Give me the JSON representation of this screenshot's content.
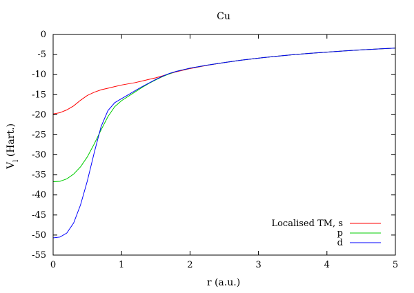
{
  "chart_data": {
    "type": "line",
    "title": "Cu",
    "xlabel": "r (a.u.)",
    "ylabel": {
      "main": "V",
      "sub": "l",
      "unit": " (Hart.)"
    },
    "xlim": [
      0,
      5
    ],
    "ylim": [
      -55,
      0
    ],
    "x_ticks": [
      0,
      1,
      2,
      3,
      4,
      5
    ],
    "y_ticks": [
      0,
      -5,
      -10,
      -15,
      -20,
      -25,
      -30,
      -35,
      -40,
      -45,
      -50,
      -55
    ],
    "grid": false,
    "legend_position": "bottom-right",
    "series": [
      {
        "name": "Localised TM, s",
        "color": "#ff0000",
        "points": [
          [
            0,
            -19.8
          ],
          [
            0.1,
            -19.5
          ],
          [
            0.2,
            -18.8
          ],
          [
            0.3,
            -17.8
          ],
          [
            0.4,
            -16.4
          ],
          [
            0.5,
            -15.2
          ],
          [
            0.6,
            -14.4
          ],
          [
            0.7,
            -13.8
          ],
          [
            0.8,
            -13.4
          ],
          [
            0.9,
            -13.0
          ],
          [
            1.0,
            -12.6
          ],
          [
            1.1,
            -12.3
          ],
          [
            1.2,
            -12.0
          ],
          [
            1.3,
            -11.6
          ],
          [
            1.4,
            -11.2
          ],
          [
            1.5,
            -10.8
          ],
          [
            1.6,
            -10.3
          ],
          [
            1.7,
            -9.8
          ],
          [
            1.8,
            -9.3
          ],
          [
            1.9,
            -8.9
          ],
          [
            2.0,
            -8.5
          ],
          [
            2.25,
            -7.7
          ],
          [
            2.5,
            -7.0
          ],
          [
            2.75,
            -6.4
          ],
          [
            3.0,
            -5.9
          ],
          [
            3.25,
            -5.45
          ],
          [
            3.5,
            -5.05
          ],
          [
            3.75,
            -4.7
          ],
          [
            4.0,
            -4.4
          ],
          [
            4.25,
            -4.1
          ],
          [
            4.5,
            -3.85
          ],
          [
            4.75,
            -3.6
          ],
          [
            5.0,
            -3.4
          ]
        ]
      },
      {
        "name": "p",
        "color": "#00cc00",
        "points": [
          [
            0,
            -36.7
          ],
          [
            0.1,
            -36.6
          ],
          [
            0.2,
            -36.0
          ],
          [
            0.3,
            -34.8
          ],
          [
            0.4,
            -33.0
          ],
          [
            0.5,
            -30.5
          ],
          [
            0.6,
            -27.3
          ],
          [
            0.7,
            -23.8
          ],
          [
            0.8,
            -20.5
          ],
          [
            0.9,
            -18.0
          ],
          [
            1.0,
            -16.5
          ],
          [
            1.1,
            -15.4
          ],
          [
            1.2,
            -14.3
          ],
          [
            1.3,
            -13.2
          ],
          [
            1.4,
            -12.2
          ],
          [
            1.5,
            -11.3
          ],
          [
            1.6,
            -10.5
          ],
          [
            1.7,
            -9.8
          ],
          [
            1.8,
            -9.2
          ],
          [
            1.9,
            -8.8
          ],
          [
            2.0,
            -8.4
          ],
          [
            2.25,
            -7.65
          ],
          [
            2.5,
            -7.0
          ],
          [
            2.75,
            -6.4
          ],
          [
            3.0,
            -5.9
          ],
          [
            3.25,
            -5.45
          ],
          [
            3.5,
            -5.05
          ],
          [
            3.75,
            -4.7
          ],
          [
            4.0,
            -4.4
          ],
          [
            4.25,
            -4.1
          ],
          [
            4.5,
            -3.85
          ],
          [
            4.75,
            -3.6
          ],
          [
            5.0,
            -3.4
          ]
        ]
      },
      {
        "name": "d",
        "color": "#0000ff",
        "points": [
          [
            0,
            -50.7
          ],
          [
            0.1,
            -50.5
          ],
          [
            0.2,
            -49.5
          ],
          [
            0.3,
            -47.0
          ],
          [
            0.4,
            -42.5
          ],
          [
            0.5,
            -36.5
          ],
          [
            0.6,
            -29.5
          ],
          [
            0.7,
            -23.0
          ],
          [
            0.8,
            -19.0
          ],
          [
            0.9,
            -17.0
          ],
          [
            1.0,
            -16.0
          ],
          [
            1.1,
            -15.0
          ],
          [
            1.2,
            -14.0
          ],
          [
            1.3,
            -13.0
          ],
          [
            1.4,
            -12.1
          ],
          [
            1.5,
            -11.2
          ],
          [
            1.6,
            -10.4
          ],
          [
            1.7,
            -9.7
          ],
          [
            1.8,
            -9.2
          ],
          [
            1.9,
            -8.8
          ],
          [
            2.0,
            -8.4
          ],
          [
            2.25,
            -7.65
          ],
          [
            2.5,
            -7.0
          ],
          [
            2.75,
            -6.4
          ],
          [
            3.0,
            -5.9
          ],
          [
            3.25,
            -5.45
          ],
          [
            3.5,
            -5.05
          ],
          [
            3.75,
            -4.7
          ],
          [
            4.0,
            -4.4
          ],
          [
            4.25,
            -4.1
          ],
          [
            4.5,
            -3.85
          ],
          [
            4.75,
            -3.6
          ],
          [
            5.0,
            -3.4
          ]
        ]
      }
    ]
  }
}
